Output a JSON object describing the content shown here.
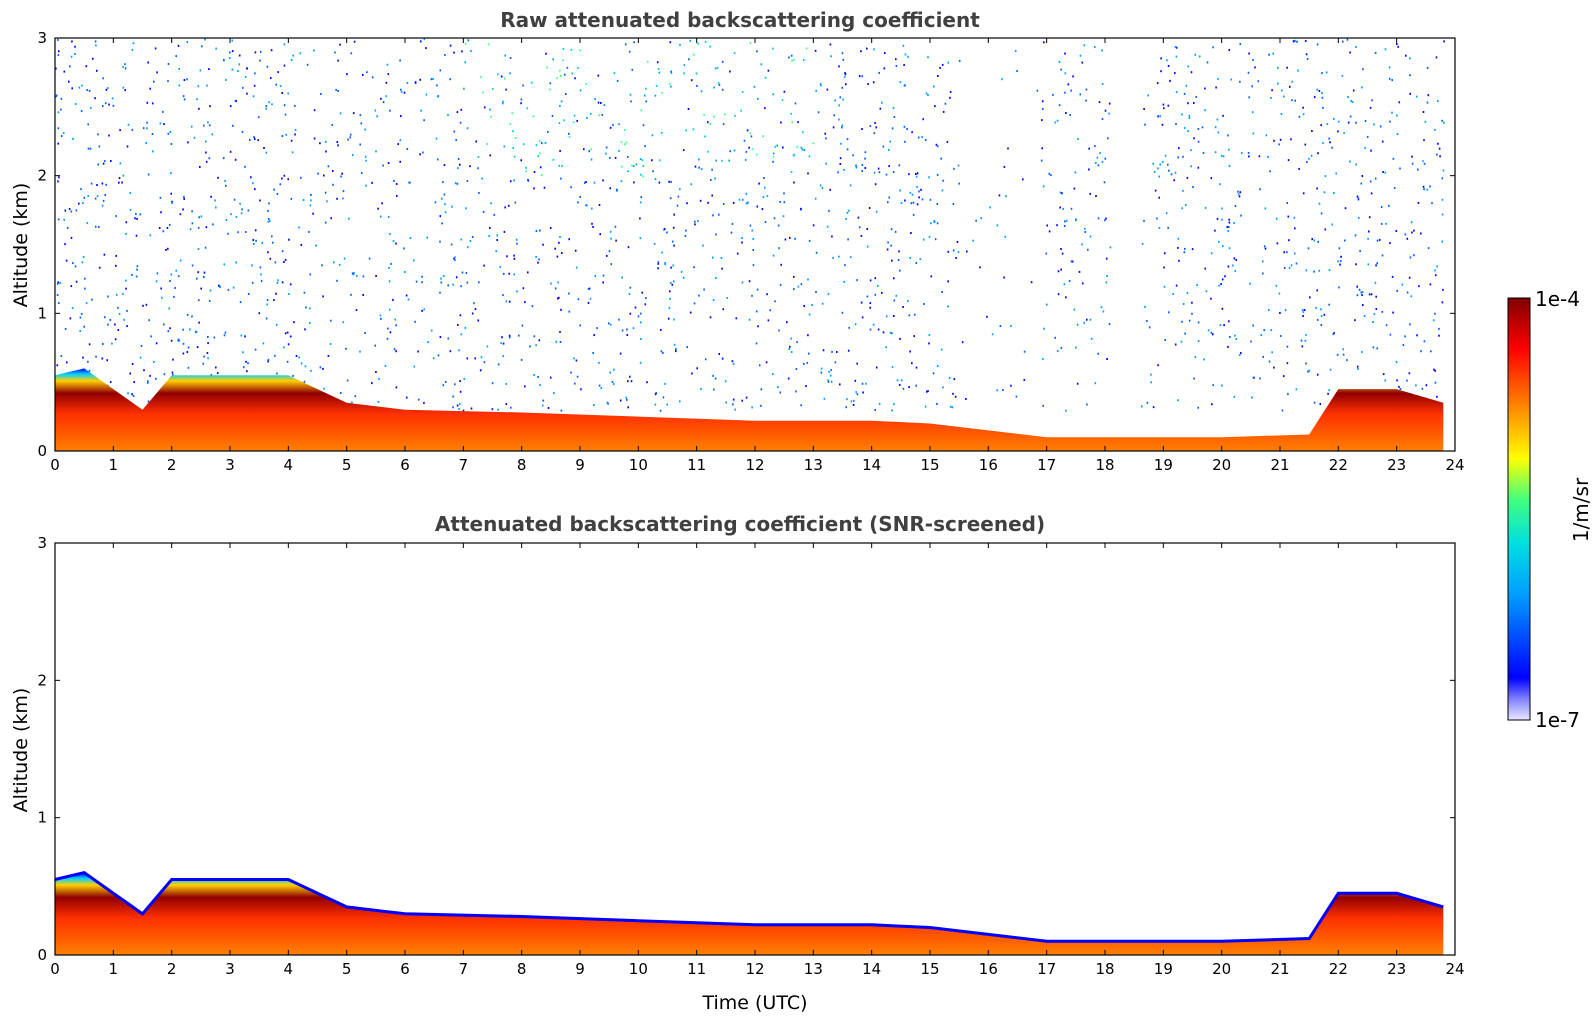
{
  "chart_data": [
    {
      "type": "heatmap",
      "title": "Raw attenuated backscattering coefficient",
      "ylabel": "Altitude (km)",
      "xlabel": "",
      "xlim": [
        0,
        24
      ],
      "ylim": [
        0,
        3
      ],
      "xticks": [
        "0",
        "1",
        "2",
        "3",
        "4",
        "5",
        "6",
        "7",
        "8",
        "9",
        "10",
        "11",
        "12",
        "13",
        "14",
        "15",
        "16",
        "17",
        "18",
        "19",
        "20",
        "21",
        "22",
        "23",
        "24"
      ],
      "yticks": [
        "0",
        "1",
        "2",
        "3"
      ],
      "boundary_layer_top_km": [
        [
          0,
          0.55
        ],
        [
          0.5,
          0.6
        ],
        [
          1,
          0.45
        ],
        [
          1.5,
          0.3
        ],
        [
          2,
          0.55
        ],
        [
          3,
          0.55
        ],
        [
          4,
          0.55
        ],
        [
          4.5,
          0.45
        ],
        [
          5,
          0.35
        ],
        [
          6,
          0.3
        ],
        [
          8,
          0.28
        ],
        [
          10,
          0.25
        ],
        [
          12,
          0.22
        ],
        [
          14,
          0.22
        ],
        [
          15,
          0.2
        ],
        [
          16,
          0.15
        ],
        [
          17,
          0.1
        ],
        [
          18,
          0.1
        ],
        [
          20,
          0.1
        ],
        [
          21.5,
          0.12
        ],
        [
          22,
          0.45
        ],
        [
          23,
          0.45
        ],
        [
          23.8,
          0.35
        ]
      ],
      "noise_extends_to_km": 3
    },
    {
      "type": "heatmap",
      "title": "Attenuated backscattering coefficient (SNR-screened)",
      "ylabel": "Altitude (km)",
      "xlabel": "Time (UTC)",
      "xlim": [
        0,
        24
      ],
      "ylim": [
        0,
        3
      ],
      "xticks": [
        "0",
        "1",
        "2",
        "3",
        "4",
        "5",
        "6",
        "7",
        "8",
        "9",
        "10",
        "11",
        "12",
        "13",
        "14",
        "15",
        "16",
        "17",
        "18",
        "19",
        "20",
        "21",
        "22",
        "23",
        "24"
      ],
      "yticks": [
        "0",
        "1",
        "2",
        "3"
      ],
      "boundary_layer_top_km": [
        [
          0,
          0.55
        ],
        [
          0.5,
          0.6
        ],
        [
          1,
          0.45
        ],
        [
          1.5,
          0.3
        ],
        [
          2,
          0.55
        ],
        [
          3,
          0.55
        ],
        [
          4,
          0.55
        ],
        [
          4.5,
          0.45
        ],
        [
          5,
          0.35
        ],
        [
          6,
          0.3
        ],
        [
          8,
          0.28
        ],
        [
          10,
          0.25
        ],
        [
          12,
          0.22
        ],
        [
          14,
          0.22
        ],
        [
          15,
          0.2
        ],
        [
          16,
          0.15
        ],
        [
          17,
          0.1
        ],
        [
          18,
          0.1
        ],
        [
          20,
          0.1
        ],
        [
          21.5,
          0.12
        ],
        [
          22,
          0.45
        ],
        [
          23,
          0.45
        ],
        [
          23.8,
          0.35
        ]
      ],
      "noise_extends_to_km": 0
    }
  ],
  "colorbar": {
    "label": "1/m/sr",
    "max_label": "1e-4",
    "min_label": "1e-7",
    "colormap": "jet"
  }
}
